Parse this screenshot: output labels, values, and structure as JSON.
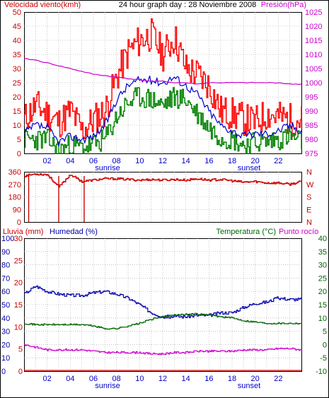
{
  "header": {
    "left": "Velocidad viento(kmh)",
    "center": "24 hour graph day : 28 Noviembre 2008",
    "right": "Presión(hPa)"
  },
  "colors": {
    "wind_gust": "#ff0000",
    "wind_avg": "#0000cc",
    "wind_low": "#008000",
    "pressure": "#cc00cc",
    "direction": "#cc0000",
    "humidity": "#0000aa",
    "temperature": "#006600",
    "dewpoint": "#cc00cc",
    "rain": "#cc0000",
    "grid": "#a0a0a0"
  },
  "x_ticks": [
    "02",
    "04",
    "06",
    "08",
    "10",
    "12",
    "14",
    "16",
    "18",
    "20",
    "22"
  ],
  "x_markers": {
    "sunrise": "sunrise",
    "sunset": "sunset"
  },
  "chart_data": [
    {
      "type": "line",
      "title": "24 hour graph day : 28 Noviembre 2008",
      "ylabel": "Velocidad viento(kmh)",
      "y2label": "Presión(hPa)",
      "ylim": [
        0,
        50
      ],
      "y_ticks": [
        "0",
        "5",
        "10",
        "15",
        "20",
        "25",
        "30",
        "35",
        "40",
        "45",
        "50"
      ],
      "y2lim": [
        975,
        1025
      ],
      "y2_ticks": [
        "975",
        "980",
        "985",
        "990",
        "995",
        "1000",
        "1005",
        "1010",
        "1015",
        "1020",
        "1025"
      ],
      "x": [
        0,
        1,
        2,
        3,
        4,
        5,
        6,
        7,
        8,
        9,
        10,
        11,
        12,
        13,
        14,
        15,
        16,
        17,
        18,
        19,
        20,
        21,
        22,
        23,
        24
      ],
      "series": [
        {
          "name": "gust",
          "values": [
            12,
            17,
            14,
            11,
            15,
            8,
            12,
            15,
            27,
            36,
            40,
            42,
            35,
            41,
            30,
            28,
            24,
            15,
            14,
            12,
            11,
            14,
            13,
            12,
            12
          ]
        },
        {
          "name": "avg",
          "values": [
            7,
            10,
            9,
            4,
            6,
            5,
            6,
            10,
            19,
            24,
            26,
            26,
            25,
            27,
            24,
            21,
            15,
            10,
            8,
            6,
            7,
            7,
            8,
            10,
            8
          ]
        },
        {
          "name": "low",
          "values": [
            5,
            5,
            5,
            1,
            3,
            2,
            3,
            5,
            13,
            18,
            20,
            19,
            17,
            20,
            19,
            14,
            9,
            6,
            5,
            3,
            4,
            4,
            5,
            6,
            4
          ]
        },
        {
          "name": "pressure",
          "values": [
            1008.5,
            1008,
            1007,
            1006,
            1005,
            1004,
            1003,
            1002.5,
            1002,
            1001.5,
            1001,
            1000.5,
            1000.5,
            1000,
            1000,
            999.5,
            1000,
            1000,
            1000,
            1000,
            1000,
            1000,
            1000,
            999.5,
            999.5
          ]
        }
      ]
    },
    {
      "type": "line",
      "ylim": [
        0,
        360
      ],
      "y_ticks": [
        "0",
        "90",
        "180",
        "270",
        "360"
      ],
      "y2_ticks": [
        "N",
        "W",
        "S",
        "E",
        "N"
      ],
      "x": [
        0,
        1,
        2,
        3,
        4,
        5,
        6,
        7,
        8,
        9,
        10,
        11,
        12,
        13,
        14,
        15,
        16,
        17,
        18,
        19,
        20,
        21,
        22,
        23,
        24
      ],
      "series": [
        {
          "name": "direction",
          "values": [
            330,
            345,
            340,
            250,
            340,
            290,
            300,
            310,
            310,
            305,
            300,
            305,
            300,
            305,
            300,
            310,
            300,
            305,
            295,
            285,
            290,
            280,
            280,
            270,
            290
          ]
        }
      ]
    },
    {
      "type": "line",
      "ylabel": "Lluvia (mm)",
      "y_ticks_rain": [
        "0",
        "5",
        "10",
        "15",
        "20",
        "25",
        "30"
      ],
      "ylim_rain": [
        0,
        30
      ],
      "ylabel_hum": "Humedad (%)",
      "y_ticks_hum": [
        "0",
        "10",
        "20",
        "30",
        "40",
        "50",
        "60",
        "70",
        "80",
        "90",
        "100"
      ],
      "ylim_hum": [
        0,
        100
      ],
      "y2label": "Temperatura (°C)",
      "y2label_b": "Punto rocío",
      "y2_ticks": [
        "-10",
        "-5",
        "0",
        "5",
        "10",
        "15",
        "20",
        "25",
        "30",
        "35",
        "40"
      ],
      "y2lim": [
        -10,
        40
      ],
      "x": [
        0,
        1,
        2,
        3,
        4,
        5,
        6,
        7,
        8,
        9,
        10,
        11,
        12,
        13,
        14,
        15,
        16,
        17,
        18,
        19,
        20,
        21,
        22,
        23,
        24
      ],
      "series": [
        {
          "name": "humidity",
          "values": [
            58,
            64,
            60,
            58,
            57,
            57,
            59,
            60,
            58,
            55,
            50,
            44,
            41,
            41,
            41,
            42,
            42,
            44,
            44,
            48,
            51,
            52,
            55,
            54,
            54
          ]
        },
        {
          "name": "temperature",
          "values": [
            8,
            7.5,
            7.5,
            7.5,
            7.5,
            7.5,
            7,
            6,
            6,
            7,
            8,
            9.5,
            10.5,
            11,
            11.5,
            11.5,
            11,
            10.5,
            10,
            9,
            8.5,
            8,
            8,
            8,
            8
          ]
        },
        {
          "name": "dewpoint",
          "values": [
            0,
            -1,
            -2,
            -2,
            -2,
            -2,
            -2.5,
            -3,
            -3,
            -3,
            -3,
            -3.5,
            -3.5,
            -3,
            -3,
            -2.5,
            -2.5,
            -2.5,
            -2.5,
            -2,
            -2,
            -2,
            -1.5,
            -1.5,
            -2
          ]
        },
        {
          "name": "rain",
          "values": [
            0,
            0,
            0,
            0,
            0,
            0,
            0,
            0,
            0,
            0,
            0,
            0,
            0,
            0,
            0,
            0,
            0,
            0,
            0,
            0,
            0,
            0,
            0,
            0,
            0
          ]
        }
      ]
    }
  ]
}
